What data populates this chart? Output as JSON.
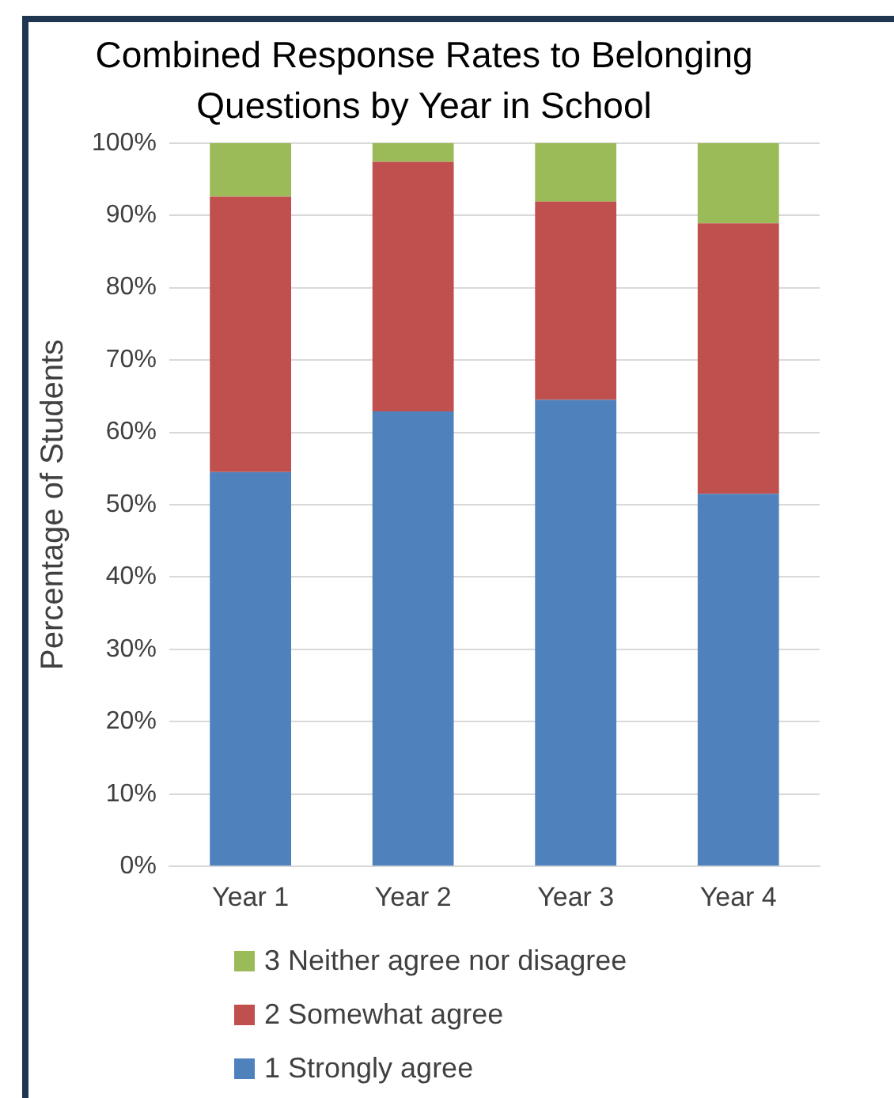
{
  "chart_data": {
    "type": "bar",
    "title": "Combined Response Rates to Belonging Questions by Year in School",
    "ylabel": "Percentage of Students",
    "categories": [
      "Year 1",
      "Year 2",
      "Year 3",
      "Year 4"
    ],
    "stacked": true,
    "series": [
      {
        "name": "1 Strongly agree",
        "color": "#4f81bd",
        "values": [
          54.5,
          62.9,
          64.5,
          51.5
        ]
      },
      {
        "name": "2 Somewhat agree",
        "color": "#c0504d",
        "values": [
          38.1,
          34.5,
          27.4,
          37.4
        ]
      },
      {
        "name": "3 Neither agree nor disagree",
        "color": "#9bbb59",
        "values": [
          7.4,
          2.6,
          8.1,
          11.1
        ]
      }
    ],
    "ylim": [
      0,
      100
    ],
    "yticks": [
      {
        "value": 0,
        "label": "0%"
      },
      {
        "value": 10,
        "label": "10%"
      },
      {
        "value": 20,
        "label": "20%"
      },
      {
        "value": 30,
        "label": "30%"
      },
      {
        "value": 40,
        "label": "40%"
      },
      {
        "value": 50,
        "label": "50%"
      },
      {
        "value": 60,
        "label": "60%"
      },
      {
        "value": 70,
        "label": "70%"
      },
      {
        "value": 80,
        "label": "80%"
      },
      {
        "value": 90,
        "label": "90%"
      },
      {
        "value": 100,
        "label": "100%"
      }
    ],
    "grid": "y",
    "legend": "bottom"
  }
}
